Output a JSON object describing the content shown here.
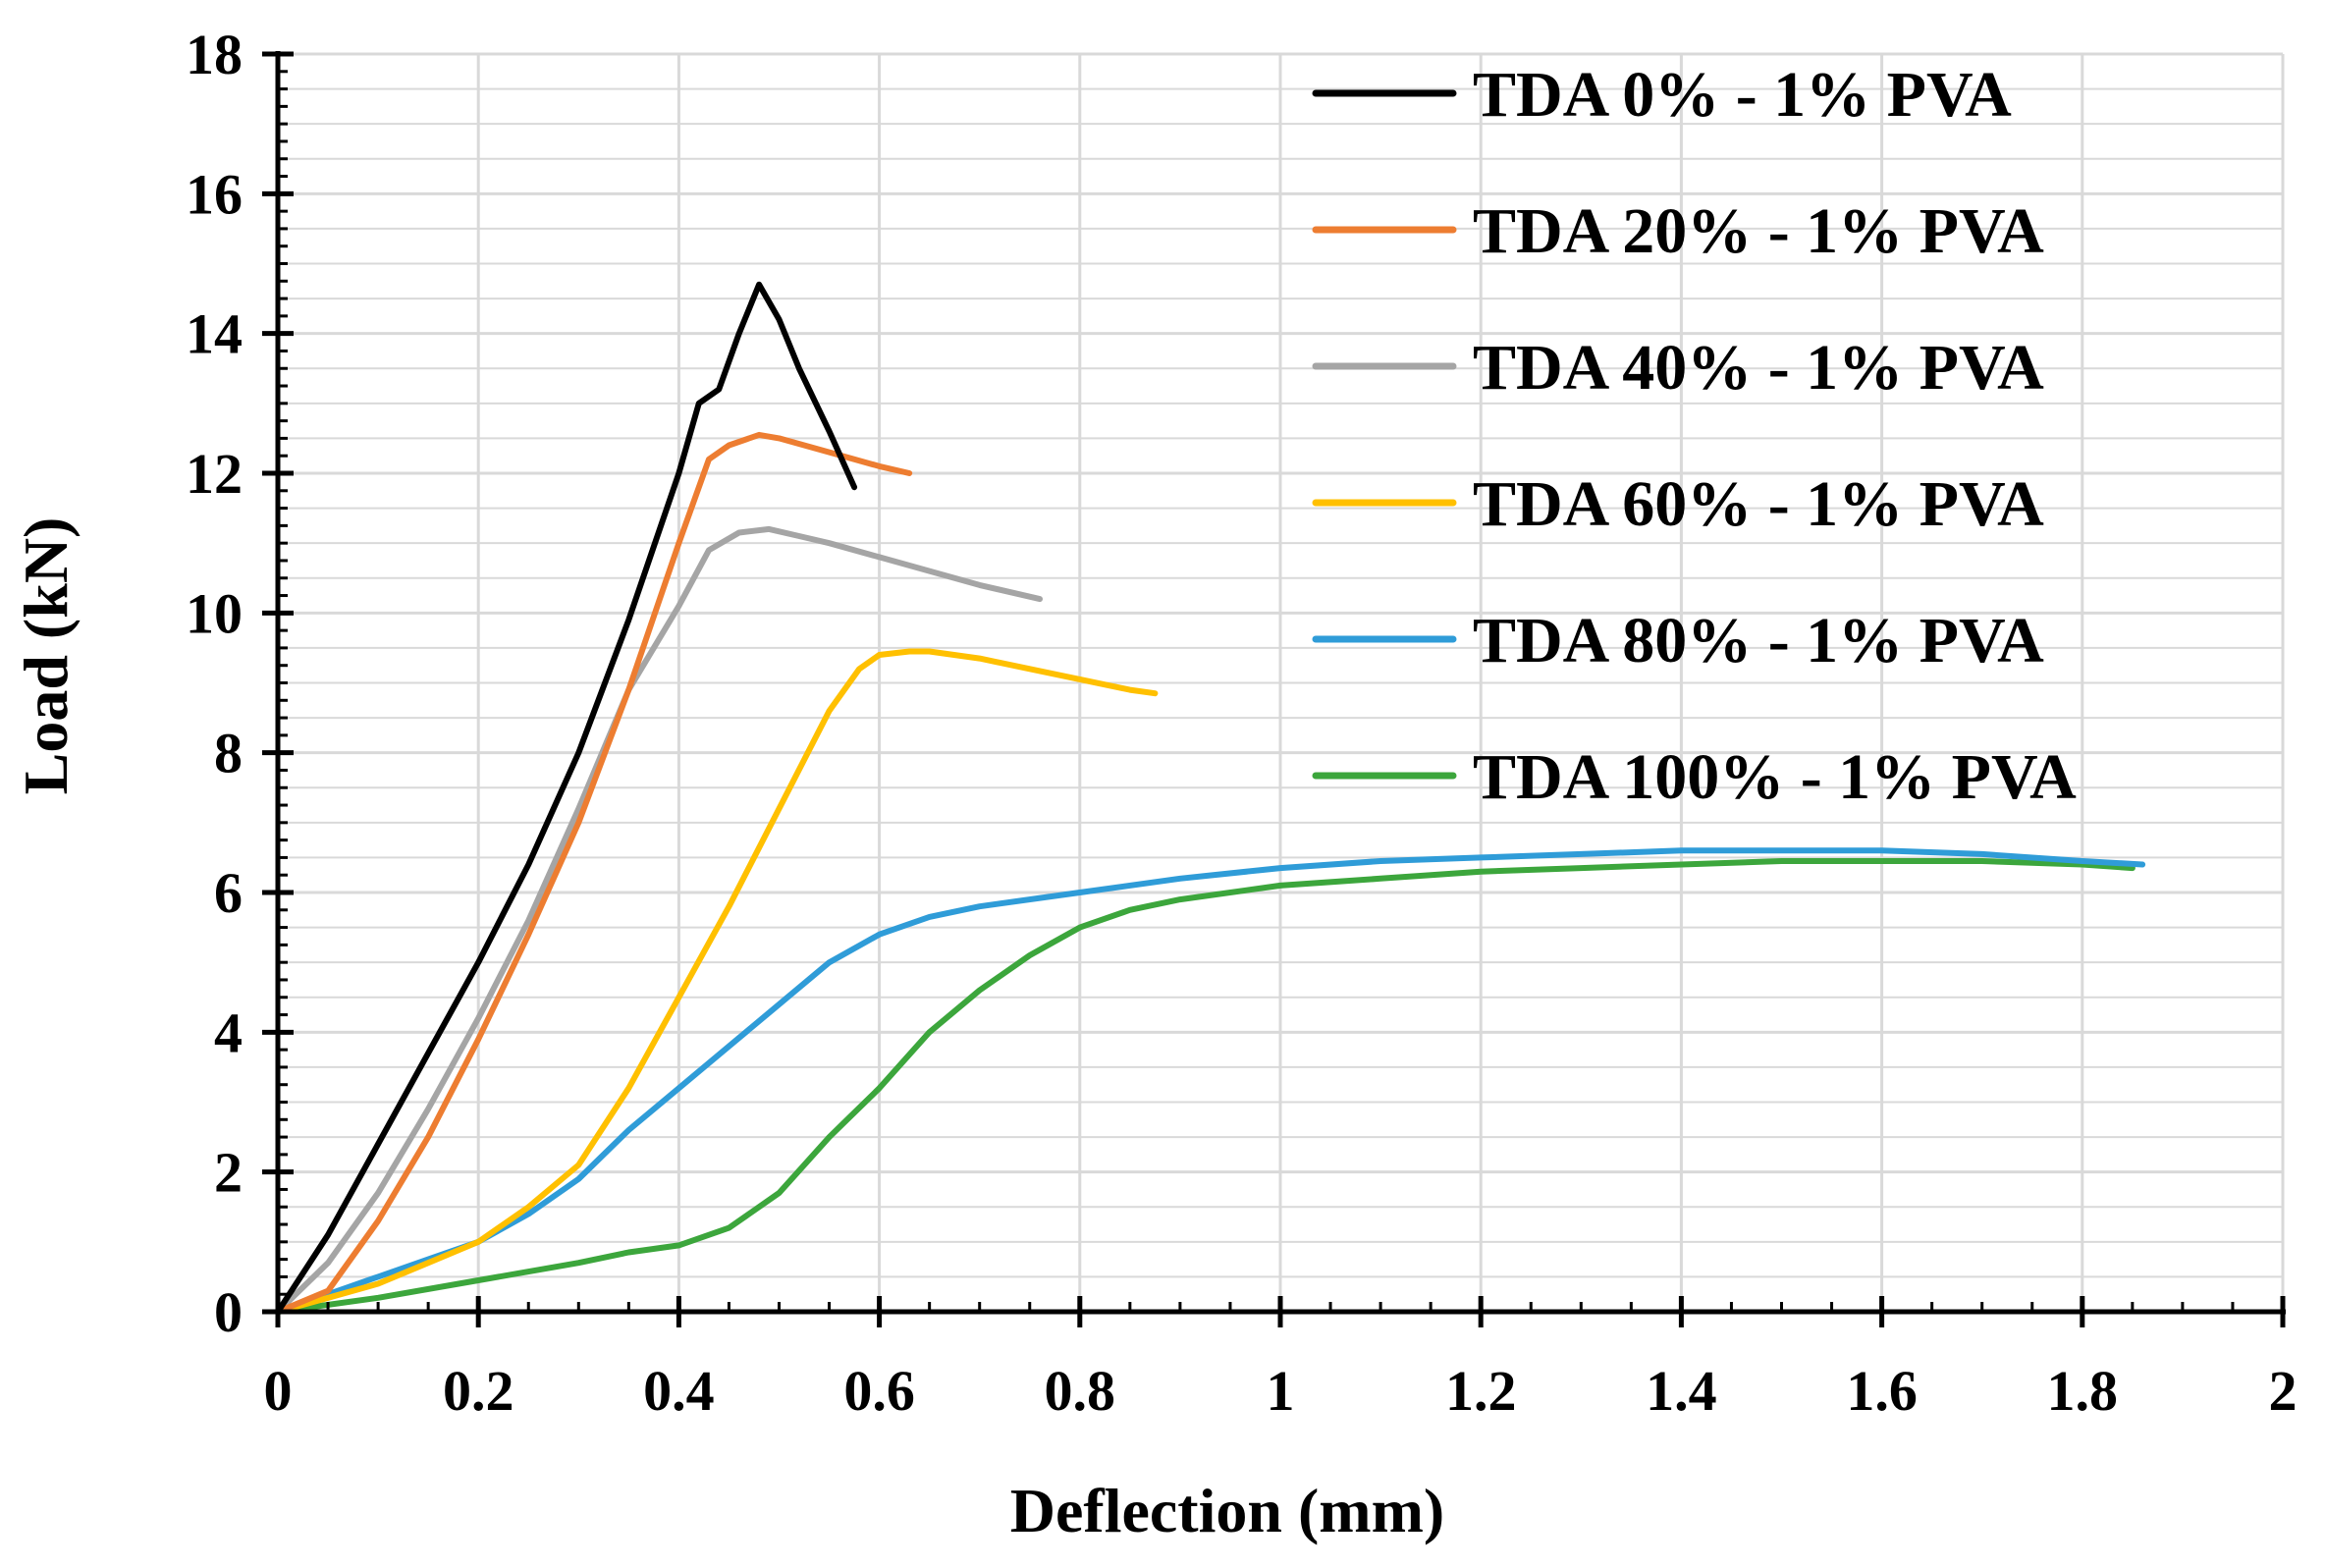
{
  "chart_data": {
    "type": "line",
    "title": "",
    "xlabel": "Deflection (mm)",
    "ylabel": "Load (kN)",
    "xlim": [
      0,
      2
    ],
    "ylim": [
      0,
      18
    ],
    "x_ticks": [
      "0",
      "0.2",
      "0.4",
      "0.6",
      "0.8",
      "1",
      "1.2",
      "1.4",
      "1.6",
      "1.8",
      "2"
    ],
    "y_ticks": [
      "0",
      "2",
      "4",
      "6",
      "8",
      "10",
      "12",
      "14",
      "16",
      "18"
    ],
    "grid": true,
    "legend_position": "top-right",
    "series": [
      {
        "name": "TDA 0% - 1% PVA",
        "color": "#000000",
        "x": [
          0,
          0.05,
          0.1,
          0.15,
          0.2,
          0.25,
          0.3,
          0.35,
          0.4,
          0.42,
          0.44,
          0.46,
          0.48,
          0.5,
          0.52,
          0.55,
          0.575
        ],
        "y": [
          0,
          1.1,
          2.4,
          3.7,
          5.0,
          6.4,
          8.0,
          9.9,
          12.0,
          13.0,
          13.2,
          14.0,
          14.7,
          14.2,
          13.5,
          12.6,
          11.8
        ]
      },
      {
        "name": "TDA 20% - 1% PVA",
        "color": "#ED7D31",
        "x": [
          0,
          0.05,
          0.1,
          0.15,
          0.2,
          0.25,
          0.3,
          0.35,
          0.4,
          0.43,
          0.45,
          0.48,
          0.5,
          0.55,
          0.6,
          0.63
        ],
        "y": [
          0,
          0.3,
          1.3,
          2.5,
          3.9,
          5.4,
          7.0,
          8.9,
          11.0,
          12.2,
          12.4,
          12.55,
          12.5,
          12.3,
          12.1,
          12.0
        ]
      },
      {
        "name": "TDA 40% - 1% PVA",
        "color": "#A5A5A5",
        "x": [
          0,
          0.05,
          0.1,
          0.15,
          0.2,
          0.25,
          0.3,
          0.35,
          0.4,
          0.43,
          0.46,
          0.49,
          0.52,
          0.55,
          0.6,
          0.65,
          0.7,
          0.76
        ],
        "y": [
          0,
          0.7,
          1.7,
          2.9,
          4.2,
          5.6,
          7.2,
          8.9,
          10.1,
          10.9,
          11.15,
          11.2,
          11.1,
          11.0,
          10.8,
          10.6,
          10.4,
          10.2
        ]
      },
      {
        "name": "TDA 60% - 1% PVA",
        "color": "#FFC000",
        "x": [
          0,
          0.05,
          0.1,
          0.15,
          0.2,
          0.25,
          0.3,
          0.35,
          0.4,
          0.45,
          0.5,
          0.55,
          0.58,
          0.6,
          0.63,
          0.65,
          0.7,
          0.75,
          0.8,
          0.85,
          0.875
        ],
        "y": [
          0,
          0.2,
          0.4,
          0.7,
          1.0,
          1.5,
          2.1,
          3.2,
          4.5,
          5.8,
          7.2,
          8.6,
          9.2,
          9.4,
          9.45,
          9.45,
          9.35,
          9.2,
          9.05,
          8.9,
          8.85
        ]
      },
      {
        "name": "TDA 80% - 1% PVA",
        "color": "#2F9CD8",
        "x": [
          0,
          0.05,
          0.1,
          0.15,
          0.2,
          0.25,
          0.3,
          0.35,
          0.4,
          0.45,
          0.5,
          0.55,
          0.6,
          0.65,
          0.7,
          0.8,
          0.9,
          1.0,
          1.1,
          1.2,
          1.3,
          1.4,
          1.5,
          1.6,
          1.7,
          1.8,
          1.86
        ],
        "y": [
          0,
          0.25,
          0.5,
          0.75,
          1.0,
          1.4,
          1.9,
          2.6,
          3.2,
          3.8,
          4.4,
          5.0,
          5.4,
          5.65,
          5.8,
          6.0,
          6.2,
          6.35,
          6.45,
          6.5,
          6.55,
          6.6,
          6.6,
          6.6,
          6.55,
          6.45,
          6.4
        ]
      },
      {
        "name": "TDA 100% - 1% PVA",
        "color": "#3CA63C",
        "x": [
          0,
          0.1,
          0.2,
          0.3,
          0.35,
          0.4,
          0.45,
          0.5,
          0.55,
          0.6,
          0.65,
          0.7,
          0.75,
          0.8,
          0.85,
          0.9,
          1.0,
          1.1,
          1.2,
          1.3,
          1.4,
          1.5,
          1.6,
          1.7,
          1.8,
          1.85
        ],
        "y": [
          0,
          0.2,
          0.45,
          0.7,
          0.85,
          0.95,
          1.2,
          1.7,
          2.5,
          3.2,
          4.0,
          4.6,
          5.1,
          5.5,
          5.75,
          5.9,
          6.1,
          6.2,
          6.3,
          6.35,
          6.4,
          6.45,
          6.45,
          6.45,
          6.4,
          6.35
        ]
      }
    ]
  }
}
